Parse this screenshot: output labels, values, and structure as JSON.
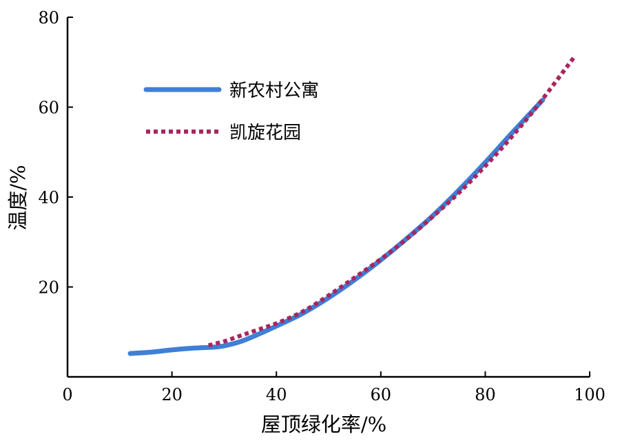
{
  "chart_data": {
    "type": "line",
    "xlabel": "屋顶绿化率/%",
    "ylabel": "温度/%",
    "xlim": [
      0,
      100
    ],
    "ylim": [
      0,
      80
    ],
    "x_ticks": [
      0,
      20,
      40,
      60,
      80,
      100
    ],
    "y_ticks": [
      20,
      40,
      60,
      80
    ],
    "grid": false,
    "legend_position": "top-left",
    "series": [
      {
        "name": "新农村公寓",
        "color": "#3f7fd6",
        "style": "solid",
        "x": [
          12,
          16,
          20,
          23,
          26,
          28,
          30,
          33,
          36,
          40,
          45,
          50,
          55,
          60,
          65,
          70,
          75,
          80,
          85,
          91
        ],
        "y": [
          5.2,
          5.5,
          6.0,
          6.3,
          6.5,
          6.6,
          6.9,
          7.8,
          9.2,
          11.3,
          14.1,
          17.6,
          21.6,
          26.0,
          30.8,
          35.9,
          41.6,
          47.7,
          54.1,
          61.6
        ]
      },
      {
        "name": "凯旋花园",
        "color": "#a8265e",
        "style": "dotted",
        "x": [
          27,
          30,
          33,
          36,
          40,
          45,
          50,
          55,
          60,
          65,
          70,
          75,
          80,
          85,
          90,
          97
        ],
        "y": [
          7.0,
          7.9,
          9.1,
          10.3,
          11.9,
          14.5,
          18.1,
          22.1,
          26.2,
          30.7,
          35.7,
          41.0,
          46.9,
          53.3,
          60.3,
          71.1
        ]
      }
    ]
  }
}
